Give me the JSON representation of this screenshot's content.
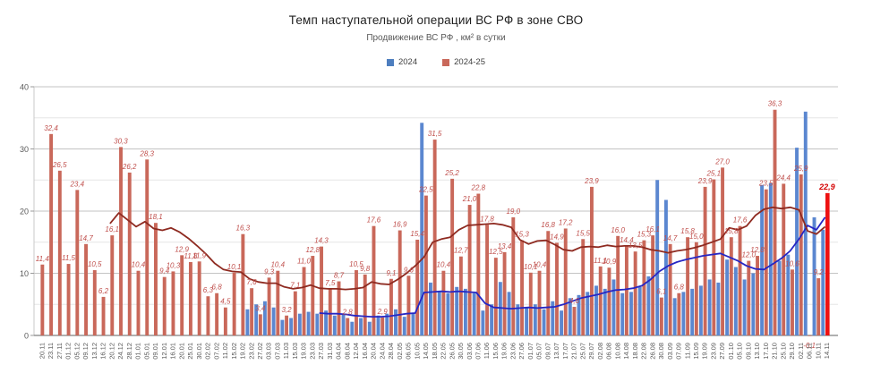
{
  "title": "Темп наступательной операции ВС РФ в зоне СВО",
  "subtitle": "Продвижение ВС РФ , км² в сутки",
  "legend": [
    {
      "label": "2024",
      "color": "#4d7ebf"
    },
    {
      "label": "2024-25",
      "color": "#c9685a"
    }
  ],
  "chart_data": {
    "type": "bar",
    "title": "Темп наступательной операции ВС РФ в зоне СВО",
    "subtitle": "Продвижение ВС РФ , км² в сутки",
    "ylim": [
      0,
      40
    ],
    "ytick_labels": [
      0,
      10,
      20,
      30,
      40
    ],
    "grid": true,
    "legend_position": "top",
    "categories": [
      "20.11",
      "23.11",
      "27.11",
      "01.12",
      "05.12",
      "09.12",
      "13.12",
      "16.12",
      "20.12",
      "24.12",
      "28.12",
      "01.01",
      "05.01",
      "09.01",
      "12.01",
      "16.01",
      "20.01",
      "25.01",
      "30.01",
      "02.02",
      "07.02",
      "11.02",
      "15.02",
      "19.02",
      "23.02",
      "27.02",
      "03.03",
      "07.03",
      "11.03",
      "15.03",
      "19.03",
      "23.03",
      "27.03",
      "31.03",
      "04.04",
      "08.04",
      "12.04",
      "16.04",
      "20.04",
      "24.04",
      "28.04",
      "02.05",
      "06.05",
      "10.05",
      "14.05",
      "18.05",
      "22.05",
      "26.05",
      "30.05",
      "03.06",
      "07.06",
      "11.06",
      "15.06",
      "19.06",
      "23.06",
      "27.06",
      "01.07",
      "05.07",
      "09.07",
      "13.07",
      "17.07",
      "21.07",
      "25.07",
      "29.07",
      "02.08",
      "06.08",
      "10.08",
      "14.08",
      "18.08",
      "22.08",
      "26.08",
      "30.08",
      "03.09",
      "07.09",
      "11.09",
      "15.09",
      "19.09",
      "23.09",
      "27.09",
      "01.10",
      "05.10",
      "09.10",
      "13.10",
      "17.10",
      "21.10",
      "25.10",
      "29.10",
      "02.11",
      "06.11",
      "10.11",
      "14.11"
    ],
    "series": [
      {
        "name": "2024",
        "color": "#5b87d0",
        "values": [
          0,
          0,
          0,
          0,
          0,
          0,
          0,
          0,
          0,
          0,
          0,
          0,
          0,
          0,
          0,
          0,
          0,
          0,
          0,
          0,
          0,
          0,
          0,
          0,
          4.2,
          5,
          5.5,
          4.5,
          2.5,
          2.8,
          3.5,
          3.8,
          3.5,
          4,
          3.2,
          3.5,
          2.2,
          2.8,
          2.2,
          3.2,
          3.5,
          4.2,
          3,
          3.5,
          34.2,
          8.5,
          7,
          6.8,
          7.8,
          7.5,
          6.8,
          4,
          5,
          8.6,
          7,
          5,
          4.5,
          5,
          4.2,
          5.5,
          4,
          6,
          6.5,
          7,
          8,
          7.5,
          9,
          6.8,
          7,
          7.8,
          9.5,
          25,
          21.8,
          6,
          7,
          7.5,
          8,
          9,
          8.5,
          12.2,
          11,
          9,
          10,
          24.2,
          24.5,
          12,
          13,
          30.2,
          36,
          19,
          17
        ]
      },
      {
        "name": "2024-25",
        "color": "#c9685a",
        "data_labels": true,
        "label_color": "#c0504d",
        "values": [
          11.4,
          32.4,
          26.5,
          11.5,
          23.4,
          14.7,
          10.5,
          6.2,
          16.1,
          30.3,
          26.2,
          10.4,
          28.3,
          18.1,
          9.4,
          10.3,
          12.9,
          11.8,
          11.9,
          6.3,
          6.8,
          4.5,
          10.1,
          16.3,
          7.6,
          3.4,
          9.3,
          10.4,
          3.2,
          7.1,
          11,
          12.8,
          14.3,
          7.5,
          8.7,
          2.8,
          10.5,
          9.8,
          17.6,
          2.9,
          9.1,
          16.9,
          9.6,
          15.4,
          22.5,
          31.5,
          10.4,
          25.2,
          12.7,
          21,
          22.8,
          17.8,
          12.5,
          13.4,
          19,
          15.3,
          10.1,
          10.4,
          16.8,
          14.9,
          17.2,
          4.6,
          15.5,
          23.9,
          11.1,
          10.9,
          16,
          14.4,
          13.5,
          15.3,
          16.1,
          6.1,
          14.7,
          6.8,
          15.8,
          15,
          23.9,
          25.1,
          27,
          15.8,
          17.6,
          12,
          12.8,
          23.5,
          36.3,
          24.4,
          10.6,
          25.9,
          -0.1,
          9.2,
          22.9
        ],
        "last_bar_highlight": {
          "color": "#ee1111",
          "label": "22,9",
          "label_bold": true
        }
      }
    ],
    "trend_lines": [
      {
        "id": "trend-2024",
        "color": "#2626c4",
        "start_index": 32,
        "values": [
          3.6,
          3.5,
          3.5,
          3.4,
          3.2,
          3.1,
          3,
          3,
          3.1,
          3.3,
          3.5,
          3.6,
          6.9,
          7,
          7.1,
          7,
          7.1,
          7,
          6.9,
          5.2,
          4.5,
          4.4,
          4.3,
          4.4,
          4.5,
          4.4,
          4.5,
          4.6,
          5,
          5.5,
          6,
          6.3,
          6.6,
          7,
          7.3,
          7.4,
          7.6,
          8,
          9,
          10.3,
          11.2,
          11.8,
          12.2,
          12.5,
          12.8,
          13,
          13.2,
          12.6,
          12,
          11.2,
          10.7,
          10.6,
          11.5,
          12.4,
          13.6,
          15.5,
          17.7,
          17,
          19
        ]
      },
      {
        "id": "trend-2024-25",
        "color": "#8e2a20",
        "start_index": 8,
        "values": [
          18,
          19.7,
          18.6,
          17.5,
          18.3,
          17.2,
          16.9,
          17.3,
          16.6,
          15.6,
          14.4,
          13.1,
          11.6,
          10.6,
          10.3,
          10.2,
          9.1,
          8.6,
          8.4,
          8.4,
          7.8,
          7.5,
          7.7,
          8.1,
          7.6,
          7.5,
          7.5,
          7.4,
          7.5,
          7.7,
          8.6,
          8.3,
          8.2,
          9,
          10,
          11.2,
          12.6,
          15,
          15.5,
          15.8,
          17,
          17.7,
          17.8,
          17.9,
          18,
          17.8,
          17.4,
          15.4,
          14.7,
          15.2,
          15.3,
          14.6,
          13.8,
          13.6,
          14.2,
          14.3,
          14.2,
          14.5,
          14.3,
          14.4,
          14.4,
          14.2,
          13.8,
          13.6,
          13.3,
          13.6,
          13.8,
          14.1,
          14.5,
          15,
          15.5,
          17.3,
          17,
          17.6,
          19.3,
          20.3,
          20.6,
          20.4,
          20.6,
          20.2,
          16.8,
          16.3,
          17.5
        ]
      }
    ],
    "negative_label": "-0,1"
  }
}
